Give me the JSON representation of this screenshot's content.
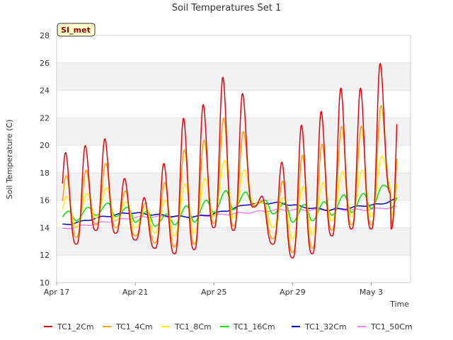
{
  "chart_data": {
    "type": "line",
    "title": "Soil Temperatures Set 1",
    "xlabel": "Time",
    "ylabel": "Soil Temperature (C)",
    "badge": "SI_met",
    "ylim": [
      10,
      28
    ],
    "xlim": [
      "2023-04-17",
      "2023-05-05"
    ],
    "y_ticks": [
      "10",
      "12",
      "14",
      "16",
      "18",
      "20",
      "22",
      "24",
      "26",
      "28"
    ],
    "x_ticks": [
      {
        "label": "Apr 17",
        "day": 0
      },
      {
        "label": "Apr 21",
        "day": 4
      },
      {
        "label": "Apr 25",
        "day": 8
      },
      {
        "label": "Apr 29",
        "day": 12
      },
      {
        "label": "May 3",
        "day": 16
      }
    ],
    "grid": "horizontal alternating bands",
    "legend_position": "bottom",
    "day_start_offset": 0.3,
    "days": 17,
    "series": [
      {
        "name": "TC1_2Cm",
        "color": "#e8000b",
        "daily_min": [
          13.3,
          12.8,
          13.8,
          13.6,
          13.1,
          12.5,
          12.1,
          12.4,
          14.0,
          13.8,
          15.5,
          12.8,
          11.8,
          12.1,
          13.4,
          13.9,
          13.9,
          16.5
        ],
        "daily_max": [
          19.5,
          20.0,
          20.5,
          17.6,
          16.2,
          18.7,
          22.0,
          23.0,
          25.0,
          23.8,
          16.3,
          18.8,
          21.5,
          22.5,
          24.2,
          24.2,
          26.0
        ]
      },
      {
        "name": "TC1_4Cm",
        "color": "#ff9f00",
        "daily_min": [
          13.6,
          13.3,
          14.2,
          14.0,
          13.4,
          12.9,
          12.6,
          12.8,
          14.3,
          14.1,
          15.6,
          13.2,
          12.2,
          12.5,
          13.8,
          14.2,
          14.2,
          16.7
        ],
        "daily_max": [
          17.8,
          18.2,
          18.7,
          16.7,
          15.8,
          17.3,
          19.7,
          20.4,
          22.0,
          21.0,
          16.0,
          17.4,
          19.3,
          20.1,
          21.4,
          21.4,
          22.9
        ]
      },
      {
        "name": "TC1_8Cm",
        "color": "#ffee00",
        "daily_min": [
          14.2,
          14.0,
          14.7,
          14.5,
          14.0,
          13.6,
          13.4,
          13.6,
          14.8,
          14.7,
          15.8,
          14.0,
          13.2,
          13.5,
          14.5,
          14.8,
          14.8,
          17.0
        ],
        "daily_max": [
          16.3,
          16.5,
          16.9,
          15.9,
          15.4,
          16.0,
          17.2,
          17.6,
          18.9,
          18.2,
          15.8,
          16.2,
          17.0,
          17.3,
          18.1,
          18.2,
          19.2
        ]
      },
      {
        "name": "TC1_16Cm",
        "color": "#00e400",
        "daily_min": [
          14.4,
          14.5,
          14.9,
          14.8,
          14.4,
          14.1,
          14.2,
          14.4,
          15.1,
          15.3,
          15.6,
          15.0,
          14.4,
          14.5,
          14.9,
          15.1,
          15.4,
          16.8
        ],
        "daily_max": [
          15.2,
          15.5,
          15.8,
          15.5,
          15.2,
          15.0,
          15.6,
          16.0,
          16.7,
          16.6,
          16.0,
          15.8,
          15.7,
          15.9,
          16.4,
          16.5,
          17.1
        ]
      },
      {
        "name": "TC1_32Cm",
        "color": "#0000c8",
        "values": [
          14.2,
          14.4,
          14.7,
          14.9,
          15.1,
          15.0,
          14.9,
          14.8,
          14.8,
          15.0,
          15.3,
          15.7,
          15.8,
          15.8,
          15.6,
          15.4,
          15.3,
          15.4,
          15.6,
          15.7,
          16.1
        ]
      },
      {
        "name": "TC1_50Cm",
        "color": "#ee82ee",
        "values": [
          13.9,
          14.1,
          14.3,
          14.5,
          14.7,
          14.8,
          14.8,
          14.8,
          14.8,
          14.9,
          15.0,
          15.1,
          15.2,
          15.3,
          15.3,
          15.3,
          15.3,
          15.3,
          15.3,
          15.4,
          15.5
        ]
      }
    ]
  }
}
